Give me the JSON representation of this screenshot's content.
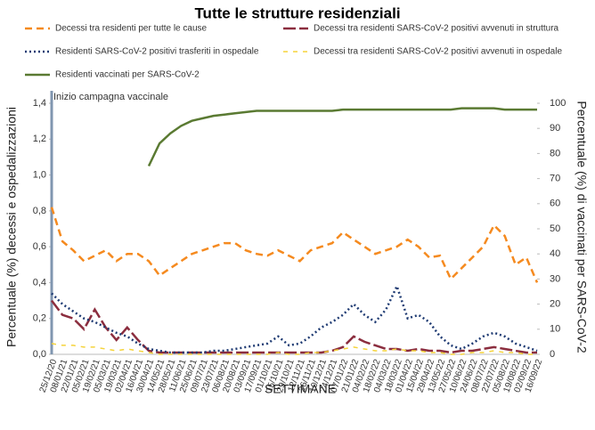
{
  "chart_data": {
    "type": "line",
    "title": "Tutte le strutture residenziali",
    "y_label": "Percentuale (%) decessi e ospedalizzazioni",
    "y2_label": "Percentuale (%) di vaccinati per SARS-CoV-2",
    "x_label": "SETTIMANE",
    "annotation": "Inizio campagna vaccinale",
    "categories": [
      "25/12/20",
      "08/01/21",
      "22/01/21",
      "05/02/21",
      "19/02/21",
      "05/03/21",
      "19/03/21",
      "02/04/21",
      "16/04/21",
      "30/04/21",
      "14/05/21",
      "28/05/21",
      "11/06/21",
      "25/06/21",
      "09/07/21",
      "23/07/21",
      "06/08/21",
      "20/08/21",
      "03/09/21",
      "17/09/21",
      "01/10/21",
      "15/10/21",
      "29/10/21",
      "12/11/21",
      "26/11/21",
      "10/12/21",
      "24/12/21",
      "07/01/22",
      "21/01/22",
      "04/02/22",
      "18/02/22",
      "04/03/22",
      "18/03/22",
      "01/04/22",
      "15/04/22",
      "29/04/22",
      "13/05/22",
      "27/05/22",
      "10/06/22",
      "24/06/22",
      "08/07/22",
      "22/07/22",
      "05/08/22",
      "19/08/22",
      "02/09/22",
      "16/09/22"
    ],
    "series": [
      {
        "name": "Decessi tra residenti per tutte le cause",
        "color": "#f58a1f",
        "values": [
          0.82,
          0.63,
          0.58,
          0.52,
          0.55,
          0.58,
          0.52,
          0.56,
          0.56,
          0.52,
          0.44,
          0.48,
          0.52,
          0.56,
          0.58,
          0.6,
          0.62,
          0.62,
          0.58,
          0.56,
          0.55,
          0.58,
          0.55,
          0.52,
          0.58,
          0.6,
          0.62,
          0.68,
          0.64,
          0.6,
          0.56,
          0.58,
          0.6,
          0.64,
          0.6,
          0.54,
          0.55,
          0.42,
          0.48,
          0.54,
          0.6,
          0.72,
          0.66,
          0.5,
          0.54,
          0.4
        ]
      },
      {
        "name": "Decessi tra residenti SARS-CoV-2 positivi avvenuti in struttura",
        "color": "#8b2d3e",
        "values": [
          0.3,
          0.22,
          0.2,
          0.14,
          0.25,
          0.15,
          0.08,
          0.15,
          0.08,
          0.02,
          0.01,
          0.01,
          0.01,
          0.01,
          0.01,
          0.01,
          0.01,
          0.01,
          0.01,
          0.01,
          0.01,
          0.01,
          0.01,
          0.01,
          0.01,
          0.01,
          0.02,
          0.04,
          0.1,
          0.07,
          0.05,
          0.03,
          0.03,
          0.02,
          0.03,
          0.02,
          0.02,
          0.01,
          0.02,
          0.02,
          0.03,
          0.04,
          0.03,
          0.02,
          0.01,
          0.01
        ]
      },
      {
        "name": "Residenti SARS-CoV-2 positivi trasferiti in ospedale",
        "color": "#1f3b73",
        "values": [
          0.34,
          0.28,
          0.24,
          0.2,
          0.18,
          0.15,
          0.12,
          0.1,
          0.06,
          0.03,
          0.02,
          0.01,
          0.01,
          0.01,
          0.01,
          0.02,
          0.02,
          0.03,
          0.04,
          0.05,
          0.06,
          0.1,
          0.05,
          0.06,
          0.1,
          0.15,
          0.18,
          0.22,
          0.28,
          0.22,
          0.18,
          0.25,
          0.38,
          0.2,
          0.22,
          0.18,
          0.1,
          0.05,
          0.03,
          0.06,
          0.1,
          0.12,
          0.1,
          0.06,
          0.04,
          0.02
        ]
      },
      {
        "name": "Decessi tra residenti SARS-CoV-2 positivi avvenuti in ospedale",
        "color": "#f5d33a",
        "values": [
          0.06,
          0.05,
          0.05,
          0.04,
          0.04,
          0.03,
          0.02,
          0.03,
          0.02,
          0.01,
          0.0,
          0.0,
          0.0,
          0.0,
          0.0,
          0.0,
          0.0,
          0.0,
          0.0,
          0.0,
          0.0,
          0.01,
          0.0,
          0.0,
          0.01,
          0.01,
          0.02,
          0.03,
          0.04,
          0.03,
          0.02,
          0.02,
          0.03,
          0.02,
          0.02,
          0.01,
          0.01,
          0.0,
          0.0,
          0.01,
          0.01,
          0.02,
          0.01,
          0.01,
          0.0,
          0.0
        ]
      },
      {
        "name": "Residenti vaccinati per SARS-CoV-2",
        "color": "#5a7a32",
        "axis": "y2",
        "values": [
          null,
          null,
          null,
          null,
          null,
          null,
          null,
          null,
          null,
          75,
          84,
          88,
          91,
          93,
          94,
          95,
          95.5,
          96,
          96.5,
          97,
          97,
          97,
          97,
          97,
          97,
          97,
          97,
          97.5,
          97.5,
          97.5,
          97.5,
          97.5,
          97.5,
          97.5,
          97.5,
          97.5,
          97.5,
          97.5,
          98,
          98,
          98,
          98,
          97.5,
          97.5,
          97.5,
          97.5
        ]
      }
    ],
    "ylim": [
      0,
      1.4
    ],
    "yticks": [
      {
        "value": 0,
        "label": "0,0"
      },
      {
        "value": 0.2,
        "label": "0,2"
      },
      {
        "value": 0.4,
        "label": "0,4"
      },
      {
        "value": 0.6,
        "label": "0,6"
      },
      {
        "value": 0.8,
        "label": "0,8"
      },
      {
        "value": 1.0,
        "label": "1,0"
      },
      {
        "value": 1.2,
        "label": "1,2"
      },
      {
        "value": 1.4,
        "label": "1,4"
      }
    ],
    "y2lim": [
      0,
      100
    ],
    "y2ticks": [
      0,
      10,
      20,
      30,
      40,
      50,
      60,
      70,
      80,
      90,
      100
    ]
  }
}
